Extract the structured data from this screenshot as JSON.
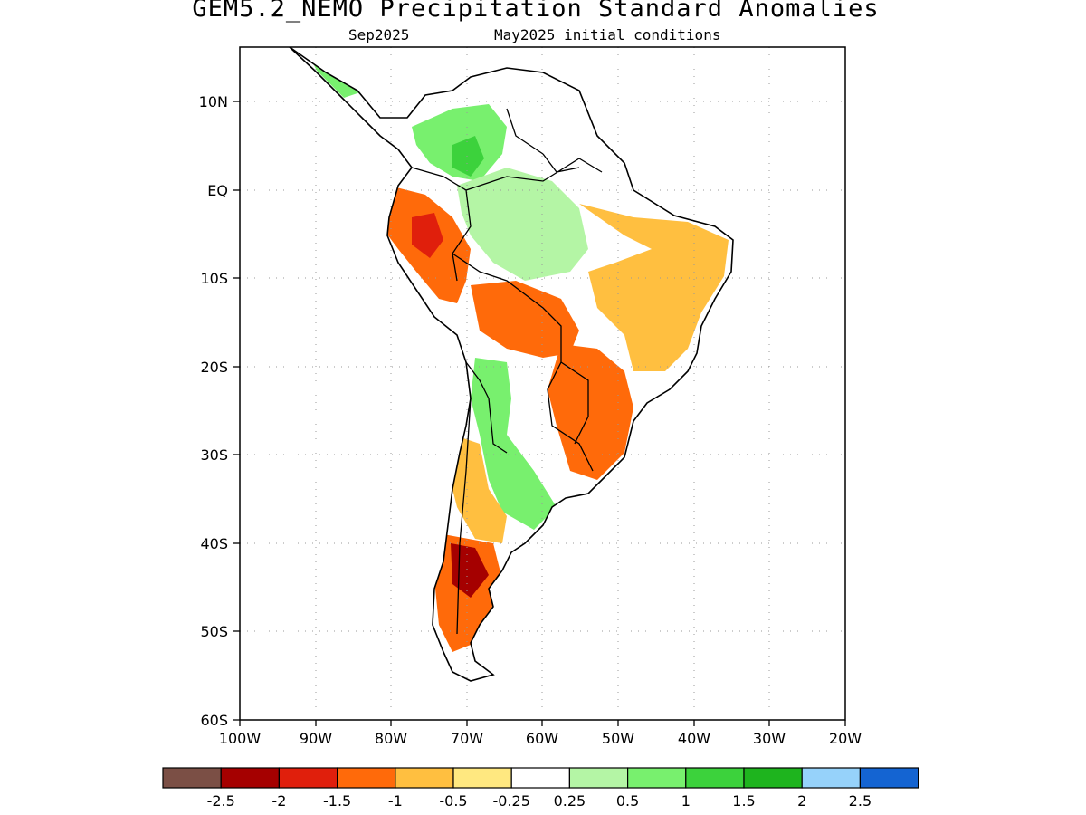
{
  "title": "GEM5.2_NEMO Precipitation Standard Anomalies",
  "subtitle_left": "Sep2025",
  "subtitle_right": "May2025 initial conditions",
  "lat_ticks": [
    "10N",
    "EQ",
    "10S",
    "20S",
    "30S",
    "40S",
    "50S",
    "60S"
  ],
  "lon_ticks": [
    "100W",
    "90W",
    "80W",
    "70W",
    "60W",
    "50W",
    "40W",
    "30W",
    "20W"
  ],
  "colorbar": {
    "colors": [
      "#7b4f45",
      "#a50000",
      "#e01f0c",
      "#ff6a0a",
      "#ffbf40",
      "#ffe880",
      "#ffffff",
      "#b4f5a5",
      "#78f06e",
      "#3cd23c",
      "#1eb41e",
      "#96d2fa",
      "#1464d2"
    ],
    "labels": [
      "-2.5",
      "-2",
      "-1.5",
      "-1",
      "-0.5",
      "-0.25",
      "0.25",
      "0.5",
      "1",
      "1.5",
      "2",
      "2.5"
    ]
  },
  "anomaly_regions": [
    {
      "id": "central-america-wet",
      "color": "#78f06e"
    },
    {
      "id": "colombia-wet",
      "color": "#78f06e"
    },
    {
      "id": "amazon-wet",
      "color": "#b4f5a5"
    },
    {
      "id": "amazon-core-wet",
      "color": "#3cd23c"
    },
    {
      "id": "nordeste-dry",
      "color": "#ffbf40"
    },
    {
      "id": "peru-dry",
      "color": "#ff6a0a"
    },
    {
      "id": "peru-core-dry",
      "color": "#e01f0c"
    },
    {
      "id": "bolivia-dry",
      "color": "#ff6a0a"
    },
    {
      "id": "southern-brazil-dry",
      "color": "#ff6a0a"
    },
    {
      "id": "argentina-wet",
      "color": "#78f06e"
    },
    {
      "id": "chile-coast-dry",
      "color": "#ffbf40"
    },
    {
      "id": "patagonia-dry",
      "color": "#ff6a0a"
    },
    {
      "id": "patagonia-core-dry",
      "color": "#a50000"
    }
  ]
}
